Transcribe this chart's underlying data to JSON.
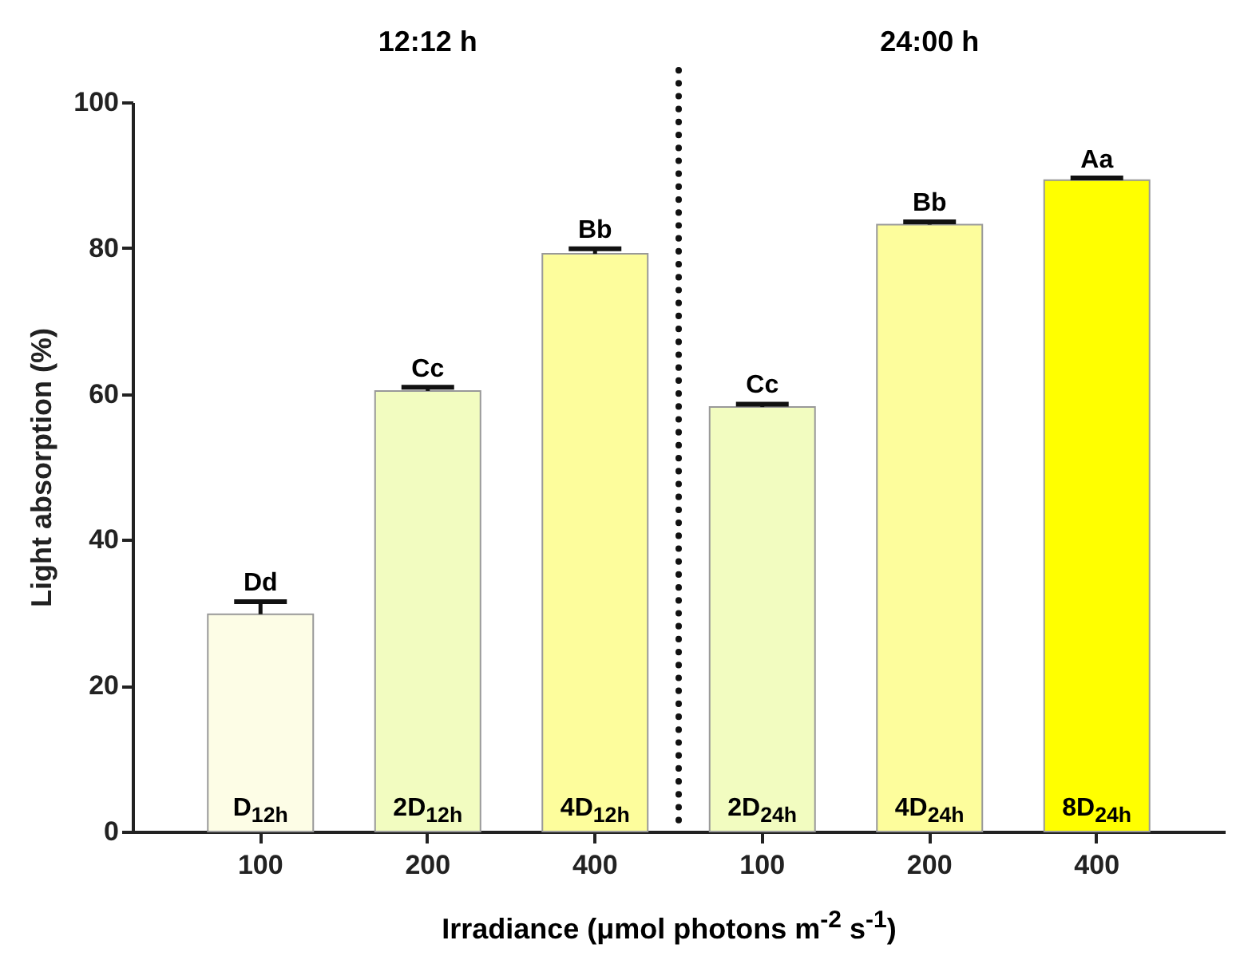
{
  "chart_data": {
    "type": "bar",
    "xlabel": "Irradiance (μmol photons m$^{-2}$ s$^{-1}$)",
    "ylabel": "Light absorption (%)",
    "categories": [
      "100",
      "200",
      "400",
      "100",
      "200",
      "400"
    ],
    "values": [
      29.8,
      60.4,
      79.2,
      58.2,
      83.2,
      89.3
    ],
    "errors": [
      1.7,
      0.5,
      0.7,
      0.4,
      0.4,
      0.3
    ],
    "colors": [
      "#fdfde6",
      "#f2fcc0",
      "#fdfd9c",
      "#f2fcc0",
      "#fdfd9c",
      "#ffff00"
    ],
    "ylim": [
      0,
      100
    ],
    "yticks": [
      0,
      20,
      40,
      60,
      80,
      100
    ],
    "grid": false,
    "annotations": [
      "12:12 h",
      "24:00 h",
      "Dd",
      "Cc",
      "Bb",
      "Cc",
      "Bb",
      "Aa",
      "D$_{12h}$",
      "2D$_{12h}$",
      "4D$_{12h}$",
      "2D$_{24h}$",
      "4D$_{24h}$",
      "8D$_{24h}$"
    ]
  }
}
